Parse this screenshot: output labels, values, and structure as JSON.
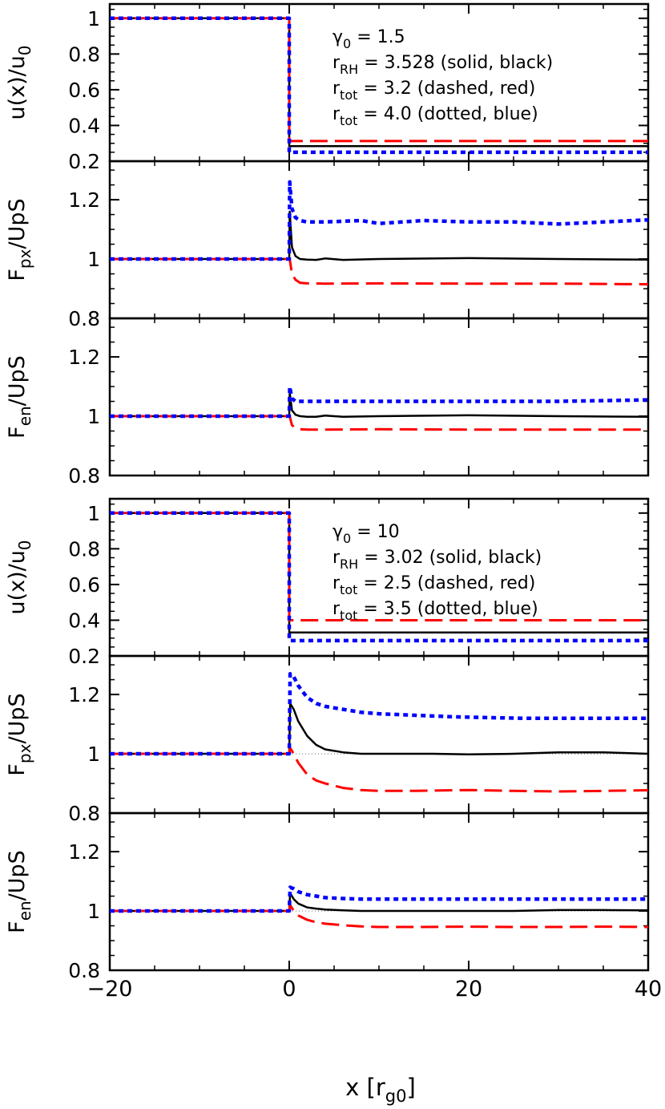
{
  "figure": {
    "xlabel": "x [r",
    "xlabel_sub": "g0",
    "xlabel_end": "]"
  },
  "chart_data": [
    {
      "type": "line",
      "ylabel": "u(x)/u",
      "ylabel_sub": "0",
      "xlim": [
        -20,
        40
      ],
      "ylim": [
        0.2,
        1.08
      ],
      "yticks": [
        0.2,
        0.4,
        0.6,
        0.8,
        1
      ],
      "ytick_labels": [
        "0.2",
        "0.4",
        "0.6",
        "0.8",
        "1"
      ],
      "xticks": [
        -20,
        0,
        20,
        40
      ],
      "legend": [
        {
          "text": "γ",
          "sub": "0",
          "rest": " = 1.5"
        },
        {
          "text": "r",
          "sub": "RH",
          "rest": " = 3.528 (solid, black)"
        },
        {
          "text": "r",
          "sub": "tot",
          "rest": " = 3.2 (dashed, red)"
        },
        {
          "text": "r",
          "sub": "tot",
          "rest": " = 4.0 (dotted, blue)"
        }
      ],
      "series": [
        {
          "style": "solid",
          "color": "#000000",
          "x": [
            -20,
            0,
            0,
            40
          ],
          "y": [
            1,
            1,
            0.284,
            0.284
          ]
        },
        {
          "style": "dashed",
          "color": "#ff0000",
          "x": [
            -20,
            0,
            0,
            40
          ],
          "y": [
            1,
            1,
            0.3125,
            0.3125
          ]
        },
        {
          "style": "dotted",
          "color": "#0000ff",
          "x": [
            -20,
            0,
            0,
            40
          ],
          "y": [
            1,
            1,
            0.25,
            0.25
          ]
        }
      ]
    },
    {
      "type": "line",
      "ylabel": "F",
      "ylabel_sub": "px",
      "ylabel_end": "/UpS",
      "xlim": [
        -20,
        40
      ],
      "ylim": [
        0.8,
        1.33
      ],
      "yticks": [
        0.8,
        1,
        1.2
      ],
      "ytick_labels": [
        "0.8",
        "1",
        "1.2"
      ],
      "xticks": [
        -20,
        0,
        20,
        40
      ],
      "series": [
        {
          "style": "solid",
          "color": "#000000",
          "x": [
            -20,
            0,
            0.05,
            0.3,
            0.7,
            1.2,
            2,
            3,
            4,
            6,
            10,
            20,
            30,
            40
          ],
          "y": [
            1,
            1,
            1.16,
            1.04,
            1.01,
            1.0,
            0.998,
            0.997,
            1.002,
            0.997,
            1.0,
            1.003,
            1.0,
            0.998
          ]
        },
        {
          "style": "dashed",
          "color": "#ff0000",
          "x": [
            -20,
            0,
            0.05,
            0.3,
            0.7,
            1.2,
            2,
            4,
            10,
            20,
            30,
            40
          ],
          "y": [
            1,
            1,
            1.0,
            0.95,
            0.93,
            0.92,
            0.918,
            0.917,
            0.918,
            0.917,
            0.917,
            0.915
          ]
        },
        {
          "style": "dotted",
          "color": "#0000ff",
          "x": [
            -20,
            0,
            0.05,
            0.3,
            0.7,
            1.2,
            2,
            4,
            8,
            10,
            15,
            20,
            25,
            30,
            35,
            40
          ],
          "y": [
            1,
            1,
            1.26,
            1.17,
            1.14,
            1.13,
            1.125,
            1.125,
            1.13,
            1.12,
            1.13,
            1.125,
            1.125,
            1.118,
            1.125,
            1.132
          ]
        }
      ]
    },
    {
      "type": "line",
      "ylabel": "F",
      "ylabel_sub": "en",
      "ylabel_end": "/UpS",
      "xlim": [
        -20,
        40
      ],
      "ylim": [
        0.8,
        1.33
      ],
      "yticks": [
        0.8,
        1,
        1.2
      ],
      "ytick_labels": [
        "0.8",
        "1",
        "1.2"
      ],
      "xticks": [
        -20,
        0,
        20,
        40
      ],
      "series": [
        {
          "style": "solid",
          "color": "#000000",
          "x": [
            -20,
            0,
            0.05,
            0.3,
            0.7,
            1.2,
            2,
            3,
            4,
            6,
            10,
            20,
            30,
            40
          ],
          "y": [
            1,
            1,
            1.08,
            1.02,
            1.005,
            1.0,
            0.998,
            0.998,
            1.002,
            0.998,
            1.0,
            1.003,
            1.0,
            0.998
          ]
        },
        {
          "style": "dashed",
          "color": "#ff0000",
          "x": [
            -20,
            0,
            0.05,
            0.3,
            0.7,
            1.2,
            2,
            4,
            10,
            20,
            30,
            40
          ],
          "y": [
            1,
            1,
            1.0,
            0.97,
            0.96,
            0.956,
            0.955,
            0.955,
            0.956,
            0.955,
            0.955,
            0.955
          ]
        },
        {
          "style": "dotted",
          "color": "#0000ff",
          "x": [
            -20,
            0,
            0.05,
            0.3,
            0.7,
            1.2,
            2,
            4,
            10,
            20,
            30,
            40
          ],
          "y": [
            1,
            1,
            1.1,
            1.06,
            1.05,
            1.05,
            1.05,
            1.05,
            1.05,
            1.05,
            1.05,
            1.055
          ]
        }
      ]
    },
    {
      "type": "line",
      "ylabel": "u(x)/u",
      "ylabel_sub": "0",
      "xlim": [
        -20,
        40
      ],
      "ylim": [
        0.2,
        1.08
      ],
      "yticks": [
        0.2,
        0.4,
        0.6,
        0.8,
        1
      ],
      "ytick_labels": [
        "0.2",
        "0.4",
        "0.6",
        "0.8",
        "1"
      ],
      "xticks": [
        -20,
        0,
        20,
        40
      ],
      "legend": [
        {
          "text": "γ",
          "sub": "0",
          "rest": " = 10"
        },
        {
          "text": "r",
          "sub": "RH",
          "rest": " = 3.02 (solid, black)"
        },
        {
          "text": "r",
          "sub": "tot",
          "rest": " = 2.5 (dashed, red)"
        },
        {
          "text": "r",
          "sub": "tot",
          "rest": " = 3.5 (dotted, blue)"
        }
      ],
      "series": [
        {
          "style": "solid",
          "color": "#000000",
          "x": [
            -20,
            0,
            0,
            40
          ],
          "y": [
            1,
            1,
            0.331,
            0.331
          ]
        },
        {
          "style": "dashed",
          "color": "#ff0000",
          "x": [
            -20,
            0,
            0,
            40
          ],
          "y": [
            1,
            1,
            0.4,
            0.4
          ]
        },
        {
          "style": "dotted",
          "color": "#0000ff",
          "x": [
            -20,
            0,
            0,
            40
          ],
          "y": [
            1,
            1,
            0.2857,
            0.2857
          ]
        }
      ]
    },
    {
      "type": "line",
      "ylabel": "F",
      "ylabel_sub": "px",
      "ylabel_end": "/UpS",
      "xlim": [
        -20,
        40
      ],
      "ylim": [
        0.8,
        1.33
      ],
      "yticks": [
        0.8,
        1,
        1.2
      ],
      "ytick_labels": [
        "0.8",
        "1",
        "1.2"
      ],
      "xticks": [
        -20,
        0,
        20,
        40
      ],
      "reference_line": {
        "x": [
          0,
          40
        ],
        "y": 1
      },
      "series": [
        {
          "style": "solid",
          "color": "#000000",
          "x": [
            -20,
            0,
            0.1,
            0.5,
            1,
            2,
            3,
            4,
            6,
            8,
            12,
            16,
            20,
            25,
            30,
            35,
            40
          ],
          "y": [
            1,
            1,
            1.17,
            1.15,
            1.11,
            1.06,
            1.03,
            1.015,
            1.005,
            1.0,
            1.0,
            1.0,
            0.998,
            1.0,
            1.005,
            1.005,
            1.0
          ]
        },
        {
          "style": "dashed",
          "color": "#ff0000",
          "x": [
            -20,
            0,
            0.1,
            0.5,
            1,
            2,
            3,
            4,
            6,
            8,
            10,
            14,
            20,
            25,
            30,
            35,
            40
          ],
          "y": [
            1,
            1,
            1.02,
            1.0,
            0.97,
            0.93,
            0.91,
            0.9,
            0.885,
            0.878,
            0.875,
            0.875,
            0.878,
            0.875,
            0.873,
            0.875,
            0.877
          ]
        },
        {
          "style": "dotted",
          "color": "#0000ff",
          "x": [
            -20,
            0,
            0.1,
            0.5,
            1,
            2,
            3,
            4,
            6,
            8,
            10,
            14,
            18,
            22,
            26,
            30,
            35,
            40
          ],
          "y": [
            1,
            1,
            1.27,
            1.26,
            1.23,
            1.19,
            1.17,
            1.16,
            1.15,
            1.14,
            1.135,
            1.13,
            1.125,
            1.122,
            1.12,
            1.12,
            1.12,
            1.12
          ]
        }
      ]
    },
    {
      "type": "line",
      "ylabel": "F",
      "ylabel_sub": "en",
      "ylabel_end": "/UpS",
      "xlim": [
        -20,
        40
      ],
      "ylim": [
        0.8,
        1.33
      ],
      "yticks": [
        0.8,
        1,
        1.2
      ],
      "ytick_labels": [
        "0.8",
        "1",
        "1.2"
      ],
      "xticks": [
        -20,
        0,
        20,
        40
      ],
      "reference_line": {
        "x": [
          0,
          40
        ],
        "y": 1
      },
      "series": [
        {
          "style": "solid",
          "color": "#000000",
          "x": [
            -20,
            0,
            0.1,
            0.5,
            1,
            2,
            3,
            4,
            6,
            8,
            12,
            16,
            20,
            25,
            30,
            35,
            40
          ],
          "y": [
            1,
            1,
            1.06,
            1.04,
            1.025,
            1.012,
            1.008,
            1.005,
            1.002,
            1.0,
            1.0,
            1.0,
            1.0,
            1.0,
            1.003,
            1.003,
            1.002
          ]
        },
        {
          "style": "dashed",
          "color": "#ff0000",
          "x": [
            -20,
            0,
            0.1,
            0.5,
            1,
            2,
            3,
            4,
            6,
            8,
            10,
            14,
            20,
            25,
            30,
            35,
            40
          ],
          "y": [
            1,
            1,
            1.02,
            1.0,
            0.985,
            0.97,
            0.962,
            0.957,
            0.952,
            0.948,
            0.946,
            0.946,
            0.947,
            0.946,
            0.946,
            0.947,
            0.946
          ]
        },
        {
          "style": "dotted",
          "color": "#0000ff",
          "x": [
            -20,
            0,
            0.1,
            0.5,
            1,
            2,
            3,
            4,
            6,
            8,
            10,
            14,
            20,
            25,
            30,
            35,
            40
          ],
          "y": [
            1,
            1,
            1.08,
            1.075,
            1.065,
            1.055,
            1.05,
            1.045,
            1.042,
            1.04,
            1.04,
            1.04,
            1.04,
            1.04,
            1.04,
            1.04,
            1.04
          ]
        }
      ]
    }
  ]
}
